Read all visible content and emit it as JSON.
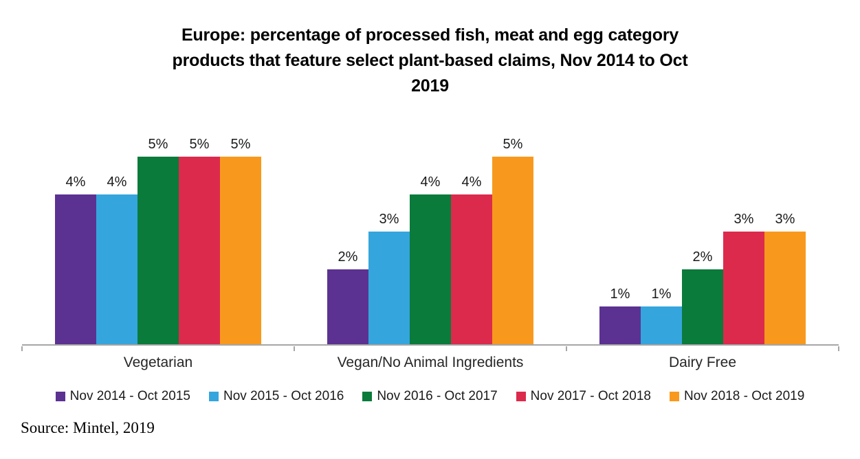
{
  "title_lines": [
    "Europe: percentage of processed fish, meat and egg category",
    "products that feature select plant-based claims, Nov 2014 to Oct",
    "2019"
  ],
  "source": "Source: Mintel, 2019",
  "colors": {
    "axis": "#A6A6A6",
    "title_text": "#000000",
    "label_text": "#1a1a1a"
  },
  "chart_data": {
    "type": "bar",
    "title": "Europe: percentage of processed fish, meat and egg category products that feature select plant-based claims, Nov 2014 to Oct 2019",
    "categories": [
      "Vegetarian",
      "Vegan/No Animal Ingredients",
      "Dairy Free"
    ],
    "series": [
      {
        "name": "Nov 2014 - Oct 2015",
        "color": "#5B3292",
        "values": [
          4,
          2,
          1
        ]
      },
      {
        "name": "Nov 2015 - Oct 2016",
        "color": "#35A5DD",
        "values": [
          4,
          3,
          1
        ]
      },
      {
        "name": "Nov 2016 - Oct 2017",
        "color": "#0A7B3B",
        "values": [
          5,
          4,
          2
        ]
      },
      {
        "name": "Nov 2017 - Oct 2018",
        "color": "#DC2A4C",
        "values": [
          5,
          4,
          3
        ]
      },
      {
        "name": "Nov 2018 - Oct 2019",
        "color": "#F8991D",
        "values": [
          5,
          5,
          3
        ]
      }
    ],
    "value_suffix": "%",
    "data_labels": true,
    "xlabel": "",
    "ylabel": "",
    "ylim": [
      0,
      5.6
    ],
    "grid": false,
    "y_axis_visible": false,
    "legend_position": "bottom",
    "source": "Source: Mintel, 2019"
  }
}
